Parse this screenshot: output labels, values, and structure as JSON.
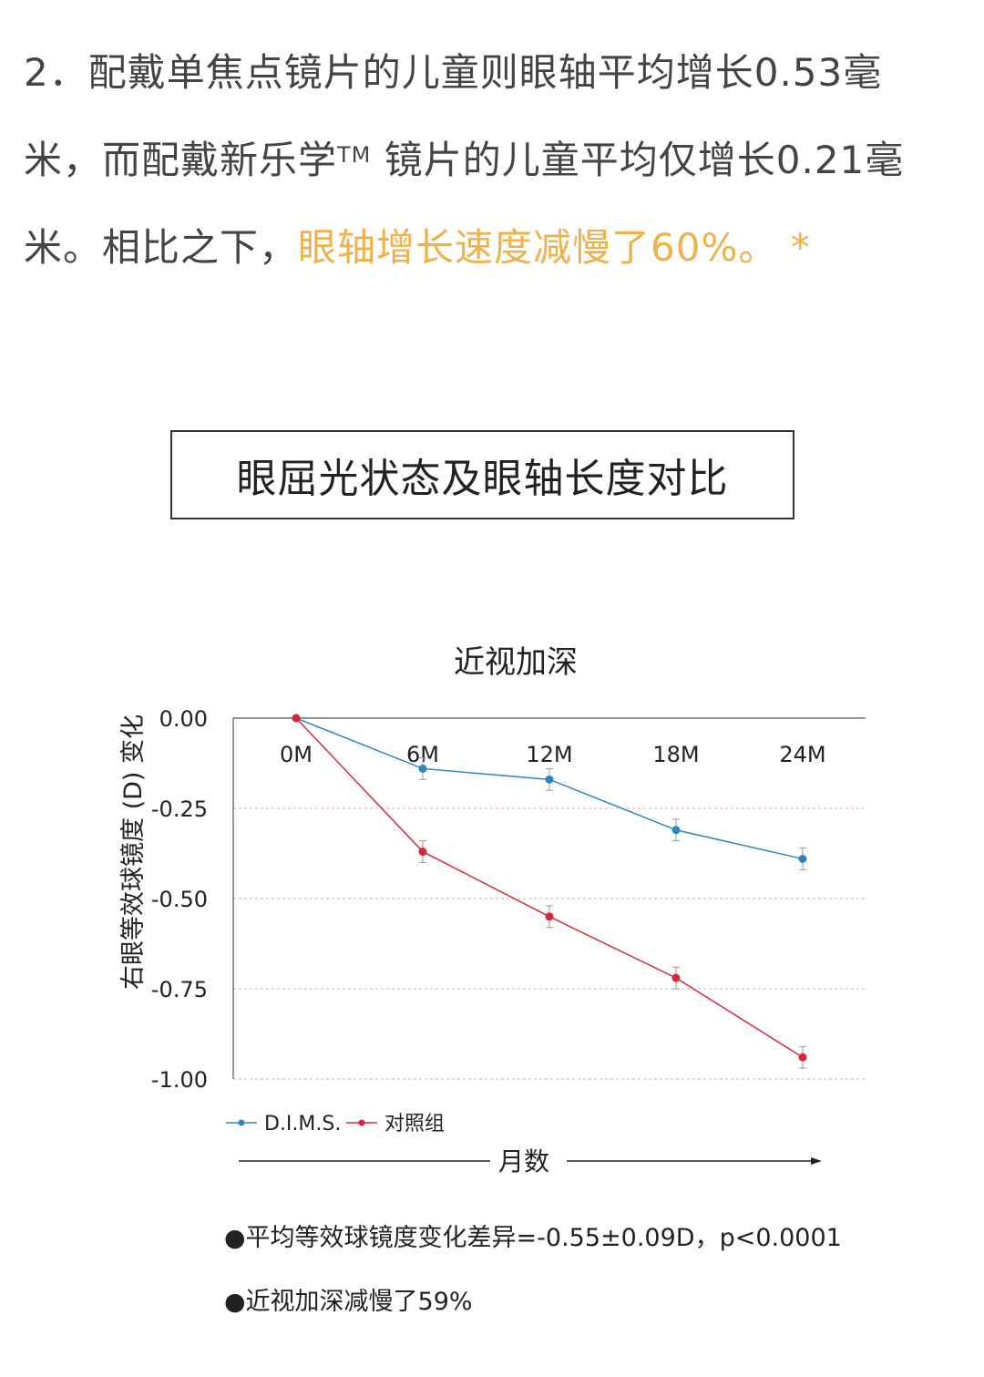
{
  "intro": {
    "line1": "2．配戴单焦点镜片的儿童则眼轴平均增长0.53毫",
    "line2_a": "米，而配戴新乐学",
    "line2_tm": "TM",
    "line2_b": " 镜片的儿童平均仅增长0.21毫",
    "line3_a": "米。相比之下，",
    "line3_highlight": "眼轴增长速度减慢了60%。",
    "line3_star": " *"
  },
  "colors": {
    "highlight": "#f0b14a",
    "dims": "#2e86c1",
    "control": "#d7263d",
    "text": "#444444"
  },
  "section_title": "眼屈光状态及眼轴长度对比",
  "chart_data": {
    "type": "line",
    "title": "近视加深",
    "ylabel": "右眼等效球镜度 (D) 变化",
    "xlabel": "月数",
    "categories": [
      "0M",
      "6M",
      "12M",
      "18M",
      "24M"
    ],
    "x": [
      0,
      6,
      12,
      18,
      24
    ],
    "ylim": [
      -1.0,
      0.0
    ],
    "yticks": [
      "0.00",
      "-0.25",
      "-0.50",
      "-0.75",
      "-1.00"
    ],
    "ytick_values": [
      0.0,
      -0.25,
      -0.5,
      -0.75,
      -1.0
    ],
    "grid": true,
    "legend": "bottom-left",
    "series": [
      {
        "name": "D.I.M.S.",
        "color": "#2e86c1",
        "values": [
          0.0,
          -0.14,
          -0.17,
          -0.31,
          -0.39
        ],
        "error": [
          0,
          0.03,
          0.03,
          0.03,
          0.03
        ]
      },
      {
        "name": "对照组",
        "color": "#d7263d",
        "values": [
          0.0,
          -0.37,
          -0.55,
          -0.72,
          -0.94
        ],
        "error": [
          0,
          0.03,
          0.03,
          0.03,
          0.03
        ]
      }
    ]
  },
  "bullets": [
    "●平均等效球镜度变化差异=-0.55±0.09D，p<0.0001",
    "●近视加深减慢了59%"
  ]
}
